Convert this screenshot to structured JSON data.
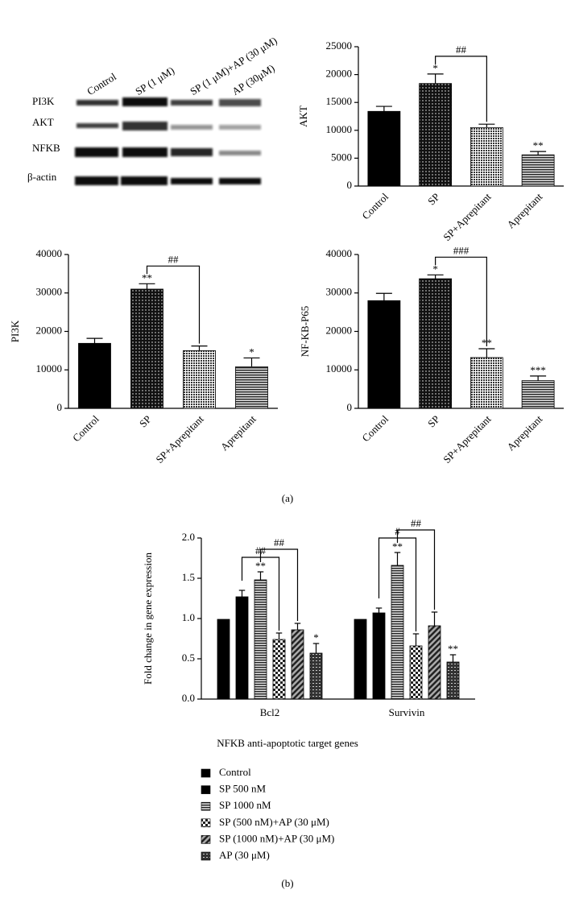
{
  "blot": {
    "lanes": [
      "Control",
      "SP (1 μM)",
      "SP (1 μM)+AP (30 μM)",
      "AP (30μM)"
    ],
    "proteins": [
      "PI3K",
      "AKT",
      "NFKB",
      "β-actin"
    ]
  },
  "panels": [
    "(a)",
    "(b)"
  ],
  "chart_data": [
    {
      "type": "bar",
      "y_label": "AKT",
      "categories": [
        "Control",
        "SP",
        "SP+Aprepitant",
        "Aprepitant"
      ],
      "values": [
        13400,
        18400,
        10500,
        5600
      ],
      "errors": [
        900,
        1700,
        600,
        600
      ],
      "patterns": [
        "solid",
        "stipple",
        "lightdot",
        "hline"
      ],
      "color": "#000000",
      "stars": [
        null,
        "*",
        null,
        "**"
      ],
      "brackets": [
        {
          "label": "##",
          "between": [
            1,
            2
          ]
        }
      ],
      "ylim": [
        0,
        25000
      ],
      "yticks": [
        0,
        5000,
        10000,
        15000,
        20000,
        25000
      ],
      "grid": false
    },
    {
      "type": "bar",
      "y_label": "PI3K",
      "categories": [
        "Control",
        "SP",
        "SP+Aprepitant",
        "Aprepitant"
      ],
      "values": [
        16900,
        31000,
        15000,
        10800
      ],
      "errors": [
        1300,
        1400,
        1200,
        2300
      ],
      "patterns": [
        "solid",
        "stipple",
        "lightdot",
        "hline"
      ],
      "color": "#000000",
      "stars": [
        null,
        "**",
        null,
        "*"
      ],
      "brackets": [
        {
          "label": "##",
          "between": [
            1,
            2
          ]
        }
      ],
      "ylim": [
        0,
        40000
      ],
      "yticks": [
        0,
        10000,
        20000,
        30000,
        40000
      ],
      "grid": false
    },
    {
      "type": "bar",
      "y_label": "NF-KB-P65",
      "categories": [
        "Control",
        "SP",
        "SP+Aprepitant",
        "Aprepitant"
      ],
      "values": [
        28000,
        33700,
        13200,
        7200
      ],
      "errors": [
        1900,
        1000,
        2300,
        1200
      ],
      "patterns": [
        "solid",
        "stipple",
        "lightdot",
        "hline"
      ],
      "color": "#000000",
      "stars": [
        null,
        "*",
        "**",
        "***"
      ],
      "brackets": [
        {
          "label": "###",
          "between": [
            1,
            2
          ]
        }
      ],
      "ylim": [
        0,
        40000
      ],
      "yticks": [
        0,
        10000,
        20000,
        30000,
        40000
      ],
      "grid": false
    },
    {
      "type": "grouped_bar",
      "y_label": "Fold change in gene expression",
      "x_label": "NFKB anti-apoptotic target genes",
      "categories": [
        "Bcl2",
        "Survivin"
      ],
      "series": [
        {
          "name": "Control",
          "color": "#000000",
          "pattern": "solid",
          "values": [
            0.99,
            0.99
          ],
          "errors": [
            0.0,
            0.0
          ],
          "stars": [
            null,
            null
          ]
        },
        {
          "name": "SP 500 nM",
          "color": "#000000",
          "pattern": "solid",
          "values": [
            1.27,
            1.07
          ],
          "errors": [
            0.08,
            0.06
          ],
          "stars": [
            null,
            null
          ]
        },
        {
          "name": "SP 1000 nM",
          "color": "#000000",
          "pattern": "hline",
          "values": [
            1.48,
            1.66
          ],
          "errors": [
            0.1,
            0.16
          ],
          "stars": [
            "**",
            "**"
          ]
        },
        {
          "name": "SP (500 nM)+AP (30 μM)",
          "color": "#000000",
          "pattern": "check",
          "values": [
            0.74,
            0.66
          ],
          "errors": [
            0.08,
            0.15
          ],
          "stars": [
            null,
            null
          ]
        },
        {
          "name": "SP (1000 nM)+AP (30 μM)",
          "color": "#000000",
          "pattern": "diag",
          "values": [
            0.86,
            0.91
          ],
          "errors": [
            0.08,
            0.17
          ],
          "stars": [
            null,
            null
          ]
        },
        {
          "name": "AP (30 μM)",
          "color": "#000000",
          "pattern": "dots",
          "values": [
            0.57,
            0.46
          ],
          "errors": [
            0.12,
            0.09
          ],
          "stars": [
            "*",
            "**"
          ]
        }
      ],
      "brackets": [
        [
          {
            "label": "##",
            "between": [
              1,
              3
            ]
          },
          {
            "label": "##",
            "between": [
              2,
              4
            ]
          }
        ],
        [
          {
            "label": "#",
            "between": [
              1,
              3
            ]
          },
          {
            "label": "##",
            "between": [
              2,
              4
            ]
          }
        ]
      ],
      "ylim": [
        0,
        2.0
      ],
      "yticks": [
        {
          "value": 0,
          "label": "0.0"
        },
        0.5,
        {
          "value": 1,
          "label": "1.0"
        },
        1.5,
        {
          "value": 2,
          "label": "2.0"
        }
      ],
      "grid": false
    }
  ]
}
